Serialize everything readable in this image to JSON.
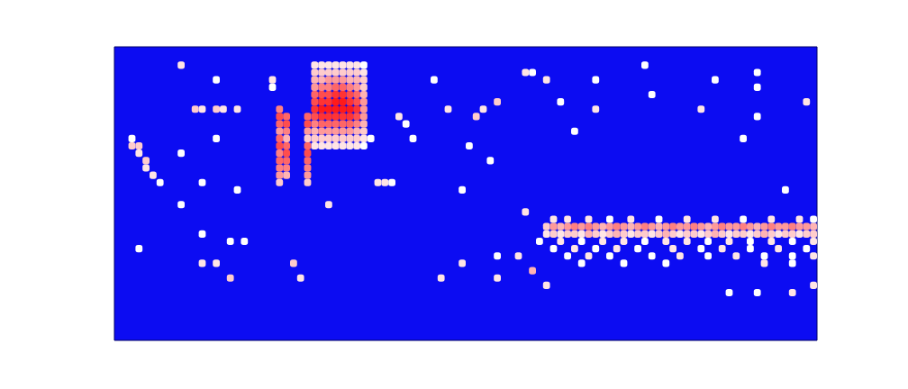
{
  "chart_data": {
    "type": "heatmap",
    "tick_labels": false,
    "xlim": [
      0,
      100
    ],
    "ylim": [
      0,
      40
    ],
    "zlim": [
      0,
      1
    ],
    "cells": [
      [
        28,
        37,
        0.55
      ],
      [
        29,
        37,
        0.55
      ],
      [
        30,
        37,
        0.55
      ],
      [
        31,
        37,
        0.55
      ],
      [
        32,
        37,
        0.55
      ],
      [
        33,
        37,
        0.55
      ],
      [
        34,
        37,
        0.55
      ],
      [
        35,
        37,
        0.5
      ],
      [
        28,
        36,
        0.6
      ],
      [
        29,
        36,
        0.6
      ],
      [
        30,
        36,
        0.6
      ],
      [
        31,
        36,
        0.6
      ],
      [
        32,
        36,
        0.6
      ],
      [
        33,
        36,
        0.6
      ],
      [
        34,
        36,
        0.6
      ],
      [
        35,
        36,
        0.55
      ],
      [
        28,
        35,
        0.65
      ],
      [
        29,
        35,
        0.65
      ],
      [
        30,
        35,
        0.7
      ],
      [
        31,
        35,
        0.7
      ],
      [
        32,
        35,
        0.7
      ],
      [
        33,
        35,
        0.65
      ],
      [
        34,
        35,
        0.65
      ],
      [
        35,
        35,
        0.6
      ],
      [
        28,
        34,
        0.7
      ],
      [
        29,
        34,
        0.75
      ],
      [
        30,
        34,
        0.75
      ],
      [
        31,
        34,
        0.8
      ],
      [
        32,
        34,
        0.8
      ],
      [
        33,
        34,
        0.75
      ],
      [
        34,
        34,
        0.7
      ],
      [
        35,
        34,
        0.6
      ],
      [
        28,
        33,
        0.8
      ],
      [
        29,
        33,
        0.85
      ],
      [
        30,
        33,
        0.85
      ],
      [
        31,
        33,
        0.9
      ],
      [
        32,
        33,
        0.9
      ],
      [
        33,
        33,
        0.85
      ],
      [
        34,
        33,
        0.8
      ],
      [
        35,
        33,
        0.65
      ],
      [
        28,
        32,
        0.85
      ],
      [
        29,
        32,
        0.9
      ],
      [
        30,
        32,
        0.9
      ],
      [
        31,
        32,
        0.95
      ],
      [
        32,
        32,
        0.95
      ],
      [
        33,
        32,
        0.9
      ],
      [
        34,
        32,
        0.85
      ],
      [
        35,
        32,
        0.7
      ],
      [
        28,
        31,
        0.9
      ],
      [
        29,
        31,
        0.95
      ],
      [
        30,
        31,
        0.95
      ],
      [
        31,
        31,
        0.95
      ],
      [
        32,
        31,
        0.95
      ],
      [
        33,
        31,
        0.95
      ],
      [
        34,
        31,
        0.9
      ],
      [
        35,
        31,
        0.7
      ],
      [
        28,
        30,
        0.85
      ],
      [
        29,
        30,
        0.9
      ],
      [
        30,
        30,
        0.9
      ],
      [
        31,
        30,
        0.9
      ],
      [
        32,
        30,
        0.9
      ],
      [
        33,
        30,
        0.9
      ],
      [
        34,
        30,
        0.85
      ],
      [
        35,
        30,
        0.7
      ],
      [
        28,
        29,
        0.75
      ],
      [
        29,
        29,
        0.8
      ],
      [
        30,
        29,
        0.8
      ],
      [
        31,
        29,
        0.8
      ],
      [
        32,
        29,
        0.8
      ],
      [
        33,
        29,
        0.8
      ],
      [
        34,
        29,
        0.75
      ],
      [
        35,
        29,
        0.65
      ],
      [
        28,
        28,
        0.65
      ],
      [
        29,
        28,
        0.7
      ],
      [
        30,
        28,
        0.7
      ],
      [
        31,
        28,
        0.7
      ],
      [
        32,
        28,
        0.7
      ],
      [
        33,
        28,
        0.7
      ],
      [
        34,
        28,
        0.65
      ],
      [
        35,
        28,
        0.6
      ],
      [
        28,
        27,
        0.6
      ],
      [
        29,
        27,
        0.6
      ],
      [
        30,
        27,
        0.6
      ],
      [
        31,
        27,
        0.6
      ],
      [
        32,
        27,
        0.6
      ],
      [
        33,
        27,
        0.6
      ],
      [
        34,
        27,
        0.6
      ],
      [
        35,
        27,
        0.55
      ],
      [
        28,
        26,
        0.55
      ],
      [
        29,
        26,
        0.55
      ],
      [
        30,
        26,
        0.55
      ],
      [
        31,
        26,
        0.55
      ],
      [
        32,
        26,
        0.55
      ],
      [
        33,
        26,
        0.55
      ],
      [
        34,
        26,
        0.55
      ],
      [
        35,
        26,
        0.5
      ],
      [
        23,
        31,
        0.75
      ],
      [
        23,
        30,
        0.85
      ],
      [
        23,
        29,
        0.8
      ],
      [
        23,
        28,
        0.7
      ],
      [
        23,
        27,
        0.8
      ],
      [
        23,
        26,
        0.85
      ],
      [
        23,
        25,
        0.75
      ],
      [
        23,
        24,
        0.8
      ],
      [
        23,
        23,
        0.75
      ],
      [
        23,
        22,
        0.7
      ],
      [
        23,
        21,
        0.6
      ],
      [
        24,
        30,
        0.8
      ],
      [
        24,
        29,
        0.85
      ],
      [
        24,
        28,
        0.75
      ],
      [
        24,
        27,
        0.65
      ],
      [
        24,
        26,
        0.8
      ],
      [
        24,
        25,
        0.85
      ],
      [
        24,
        24,
        0.8
      ],
      [
        24,
        23,
        0.75
      ],
      [
        24,
        22,
        0.65
      ],
      [
        27,
        30,
        0.8
      ],
      [
        27,
        29,
        0.85
      ],
      [
        27,
        28,
        0.7
      ],
      [
        27,
        27,
        0.6
      ],
      [
        27,
        26,
        0.8
      ],
      [
        27,
        25,
        0.85
      ],
      [
        27,
        24,
        0.8
      ],
      [
        27,
        23,
        0.75
      ],
      [
        27,
        22,
        0.7
      ],
      [
        27,
        21,
        0.6
      ],
      [
        2,
        27,
        0.5
      ],
      [
        2,
        26,
        0.6
      ],
      [
        3,
        26,
        0.6
      ],
      [
        3,
        25,
        0.55
      ],
      [
        4,
        24,
        0.6
      ],
      [
        4,
        23,
        0.55
      ],
      [
        5,
        22,
        0.55
      ],
      [
        9,
        37,
        0.55
      ],
      [
        14,
        35,
        0.5
      ],
      [
        11,
        31,
        0.6
      ],
      [
        12,
        31,
        0.55
      ],
      [
        14,
        31,
        0.6
      ],
      [
        15,
        31,
        0.55
      ],
      [
        17,
        31,
        0.55
      ],
      [
        22,
        35,
        0.55
      ],
      [
        22,
        34,
        0.5
      ],
      [
        40,
        30,
        0.55
      ],
      [
        41,
        29,
        0.5
      ],
      [
        47,
        31,
        0.55
      ],
      [
        51,
        30,
        0.6
      ],
      [
        52,
        31,
        0.55
      ],
      [
        54,
        32,
        0.6
      ],
      [
        58,
        36,
        0.55
      ],
      [
        59,
        36,
        0.5
      ],
      [
        61,
        35,
        0.55
      ],
      [
        63,
        32,
        0.5
      ],
      [
        68,
        31,
        0.55
      ],
      [
        76,
        33,
        0.5
      ],
      [
        83,
        31,
        0.55
      ],
      [
        91,
        36,
        0.5
      ],
      [
        91,
        34,
        0.5
      ],
      [
        91,
        30,
        0.5
      ],
      [
        98,
        32,
        0.55
      ],
      [
        9,
        25,
        0.5
      ],
      [
        14,
        27,
        0.5
      ],
      [
        36,
        27,
        0.5
      ],
      [
        42,
        27,
        0.5
      ],
      [
        50,
        26,
        0.5
      ],
      [
        65,
        28,
        0.5
      ],
      [
        89,
        27,
        0.5
      ],
      [
        53,
        24,
        0.5
      ],
      [
        37,
        21,
        0.55
      ],
      [
        38,
        21,
        0.55
      ],
      [
        39,
        21,
        0.5
      ],
      [
        49,
        20,
        0.5
      ],
      [
        6,
        21,
        0.5
      ],
      [
        12,
        21,
        0.5
      ],
      [
        17,
        20,
        0.5
      ],
      [
        9,
        18,
        0.5
      ],
      [
        30,
        18,
        0.55
      ],
      [
        95,
        20,
        0.5
      ],
      [
        75,
        37,
        0.5
      ],
      [
        85,
        35,
        0.5
      ],
      [
        68,
        35,
        0.5
      ],
      [
        45,
        35,
        0.5
      ],
      [
        3,
        12,
        0.5
      ],
      [
        12,
        14,
        0.5
      ],
      [
        16,
        13,
        0.5
      ],
      [
        18,
        13,
        0.5
      ],
      [
        12,
        10,
        0.55
      ],
      [
        14,
        10,
        0.55
      ],
      [
        16,
        8,
        0.6
      ],
      [
        25,
        10,
        0.6
      ],
      [
        26,
        8,
        0.55
      ],
      [
        46,
        8,
        0.55
      ],
      [
        49,
        10,
        0.55
      ],
      [
        54,
        11,
        0.5
      ],
      [
        54,
        8,
        0.55
      ],
      [
        57,
        11,
        0.55
      ],
      [
        59,
        9,
        0.65
      ],
      [
        61,
        7,
        0.55
      ],
      [
        58,
        17,
        0.55
      ],
      [
        61,
        15,
        0.6
      ],
      [
        62,
        15,
        0.7
      ],
      [
        63,
        15,
        0.65
      ],
      [
        64,
        15,
        0.7
      ],
      [
        65,
        15,
        0.75
      ],
      [
        66,
        15,
        0.7
      ],
      [
        67,
        15,
        0.75
      ],
      [
        68,
        15,
        0.7
      ],
      [
        69,
        15,
        0.65
      ],
      [
        70,
        15,
        0.7
      ],
      [
        71,
        15,
        0.75
      ],
      [
        72,
        15,
        0.7
      ],
      [
        73,
        15,
        0.65
      ],
      [
        74,
        15,
        0.7
      ],
      [
        75,
        15,
        0.75
      ],
      [
        76,
        15,
        0.7
      ],
      [
        77,
        15,
        0.65
      ],
      [
        78,
        15,
        0.7
      ],
      [
        79,
        15,
        0.75
      ],
      [
        80,
        15,
        0.7
      ],
      [
        81,
        15,
        0.7
      ],
      [
        82,
        15,
        0.75
      ],
      [
        83,
        15,
        0.7
      ],
      [
        84,
        15,
        0.65
      ],
      [
        85,
        15,
        0.7
      ],
      [
        86,
        15,
        0.75
      ],
      [
        87,
        15,
        0.7
      ],
      [
        88,
        15,
        0.7
      ],
      [
        89,
        15,
        0.75
      ],
      [
        90,
        15,
        0.7
      ],
      [
        91,
        15,
        0.65
      ],
      [
        92,
        15,
        0.7
      ],
      [
        93,
        15,
        0.75
      ],
      [
        94,
        15,
        0.7
      ],
      [
        95,
        15,
        0.7
      ],
      [
        96,
        15,
        0.75
      ],
      [
        97,
        15,
        0.7
      ],
      [
        98,
        15,
        0.7
      ],
      [
        99,
        15,
        0.65
      ],
      [
        61,
        14,
        0.55
      ],
      [
        62,
        14,
        0.6
      ],
      [
        63,
        14,
        0.55
      ],
      [
        64,
        14,
        0.6
      ],
      [
        65,
        14,
        0.6
      ],
      [
        66,
        14,
        0.55
      ],
      [
        67,
        14,
        0.65
      ],
      [
        68,
        14,
        0.6
      ],
      [
        69,
        14,
        0.55
      ],
      [
        70,
        14,
        0.6
      ],
      [
        71,
        14,
        0.65
      ],
      [
        72,
        14,
        0.6
      ],
      [
        73,
        14,
        0.55
      ],
      [
        74,
        14,
        0.6
      ],
      [
        75,
        14,
        0.6
      ],
      [
        76,
        14,
        0.55
      ],
      [
        77,
        14,
        0.6
      ],
      [
        78,
        14,
        0.65
      ],
      [
        79,
        14,
        0.6
      ],
      [
        80,
        14,
        0.55
      ],
      [
        81,
        14,
        0.6
      ],
      [
        82,
        14,
        0.6
      ],
      [
        83,
        14,
        0.55
      ],
      [
        84,
        14,
        0.6
      ],
      [
        85,
        14,
        0.65
      ],
      [
        86,
        14,
        0.6
      ],
      [
        87,
        14,
        0.55
      ],
      [
        88,
        14,
        0.6
      ],
      [
        89,
        14,
        0.6
      ],
      [
        90,
        14,
        0.55
      ],
      [
        91,
        14,
        0.6
      ],
      [
        92,
        14,
        0.65
      ],
      [
        93,
        14,
        0.6
      ],
      [
        94,
        14,
        0.55
      ],
      [
        95,
        14,
        0.6
      ],
      [
        96,
        14,
        0.6
      ],
      [
        97,
        14,
        0.55
      ],
      [
        98,
        14,
        0.6
      ],
      [
        99,
        14,
        0.6
      ],
      [
        62,
        16,
        0.55
      ],
      [
        64,
        16,
        0.55
      ],
      [
        67,
        16,
        0.55
      ],
      [
        70,
        16,
        0.5
      ],
      [
        73,
        16,
        0.55
      ],
      [
        77,
        16,
        0.5
      ],
      [
        81,
        16,
        0.55
      ],
      [
        85,
        16,
        0.55
      ],
      [
        89,
        16,
        0.5
      ],
      [
        93,
        16,
        0.55
      ],
      [
        97,
        16,
        0.55
      ],
      [
        99,
        16,
        0.5
      ],
      [
        60,
        13,
        0.5
      ],
      [
        63,
        13,
        0.55
      ],
      [
        66,
        13,
        0.5
      ],
      [
        69,
        13,
        0.55
      ],
      [
        72,
        13,
        0.55
      ],
      [
        75,
        13,
        0.5
      ],
      [
        78,
        13,
        0.55
      ],
      [
        81,
        13,
        0.55
      ],
      [
        84,
        13,
        0.5
      ],
      [
        87,
        13,
        0.55
      ],
      [
        90,
        13,
        0.5
      ],
      [
        93,
        13,
        0.55
      ],
      [
        96,
        13,
        0.5
      ],
      [
        99,
        13,
        0.55
      ],
      [
        62,
        12,
        0.5
      ],
      [
        65,
        12,
        0.55
      ],
      [
        68,
        12,
        0.5
      ],
      [
        71,
        12,
        0.55
      ],
      [
        74,
        12,
        0.5
      ],
      [
        79,
        12,
        0.55
      ],
      [
        83,
        12,
        0.5
      ],
      [
        86,
        12,
        0.55
      ],
      [
        90,
        12,
        0.5
      ],
      [
        94,
        12,
        0.55
      ],
      [
        98,
        12,
        0.5
      ],
      [
        64,
        11,
        0.5
      ],
      [
        67,
        11,
        0.55
      ],
      [
        70,
        11,
        0.5
      ],
      [
        76,
        11,
        0.5
      ],
      [
        80,
        11,
        0.55
      ],
      [
        84,
        11,
        0.5
      ],
      [
        88,
        11,
        0.55
      ],
      [
        92,
        11,
        0.5
      ],
      [
        96,
        11,
        0.5
      ],
      [
        99,
        11,
        0.55
      ],
      [
        66,
        10,
        0.5
      ],
      [
        72,
        10,
        0.5
      ],
      [
        78,
        10,
        0.5
      ],
      [
        92,
        10,
        0.55
      ],
      [
        96,
        10,
        0.5
      ],
      [
        87,
        6,
        0.5
      ],
      [
        91,
        6,
        0.5
      ],
      [
        96,
        6,
        0.55
      ],
      [
        99,
        7,
        0.55
      ]
    ]
  }
}
